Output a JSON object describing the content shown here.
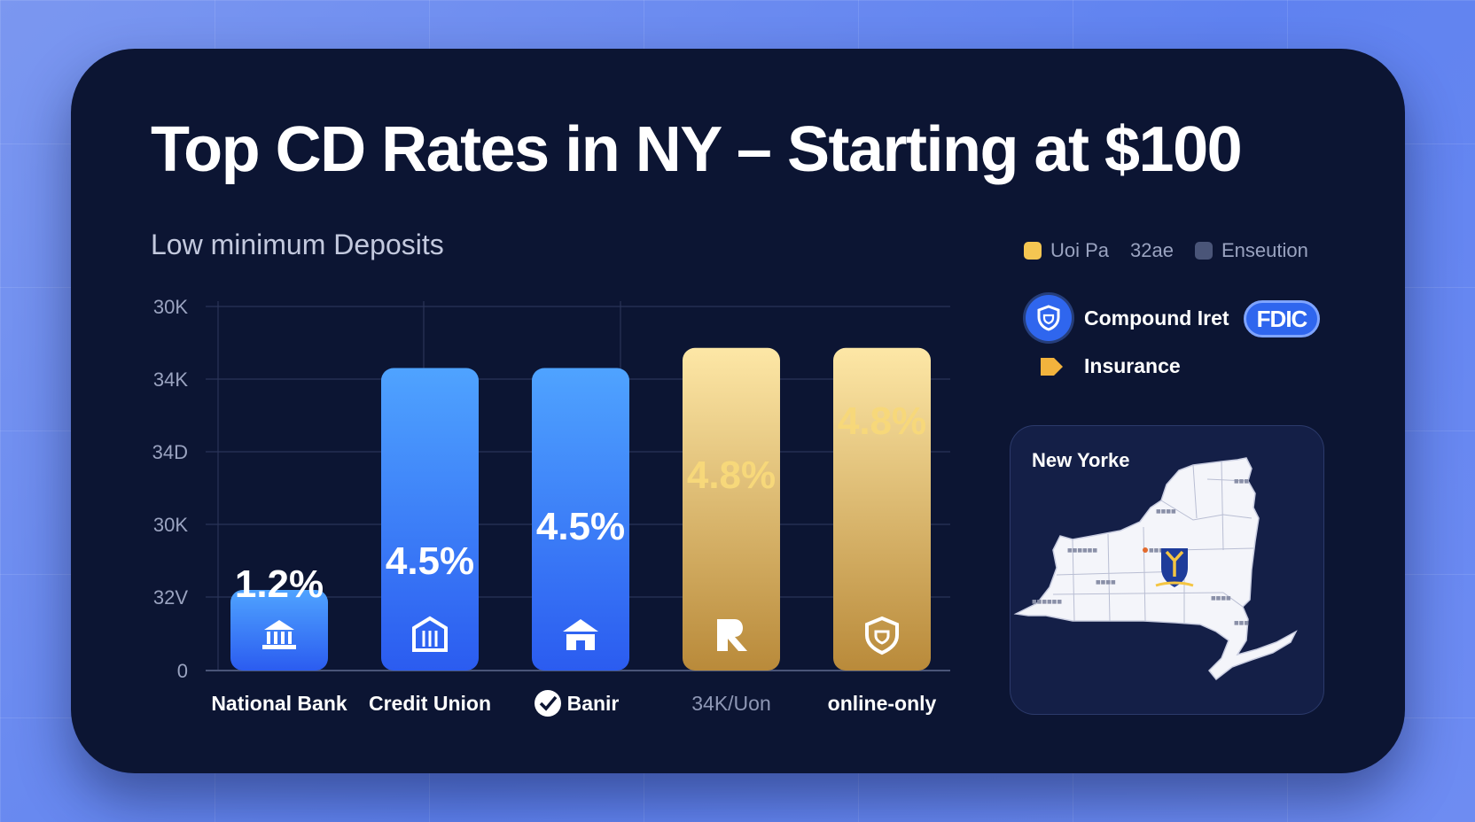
{
  "title": "Top CD Rates in NY – Starting at $100",
  "subtitle": "Low minimum Deposits",
  "legend": [
    {
      "label": "Uoi Pa",
      "color": "#f5c652"
    },
    {
      "label": "32ae",
      "color": ""
    },
    {
      "label": "Enseution",
      "color": "#4a5578"
    }
  ],
  "features": {
    "compound_label": "Compound Iret",
    "insurance_label": "Insurance",
    "fdic_label": "FDIC",
    "shield_icon": "shield-icon",
    "tag_icon": "tag-icon"
  },
  "map": {
    "title": "New Yorke",
    "icon": "new-york-state-map"
  },
  "colors": {
    "card": "#0c1533",
    "blue_bar_top": "#4fa3ff",
    "blue_bar_bottom": "#2b5cf0",
    "gold_bar_top": "#fde7a6",
    "gold_bar_bottom": "#b98a3a",
    "gold_label": "#f7d87a"
  },
  "chart_data": {
    "type": "bar",
    "title": "Top CD Rates in NY – Starting at $100",
    "subtitle": "Low minimum Deposits",
    "categories": [
      "National Bank",
      "Credit Union",
      "Banir",
      "34K/Uon",
      "online-only"
    ],
    "values": [
      1.2,
      4.5,
      4.5,
      4.8,
      4.8
    ],
    "value_labels": [
      "1.2%",
      "4.5%",
      "4.5%",
      "4.8%",
      "4.8%"
    ],
    "bar_styles": [
      "blue",
      "blue",
      "blue",
      "gold",
      "gold"
    ],
    "bar_icons": [
      "bank-icon",
      "columns-icon",
      "house-icon",
      "r-logo-icon",
      "shield-icon"
    ],
    "y_tick_labels": [
      "0",
      "32V",
      "30K",
      "34D",
      "34K",
      "30K"
    ],
    "y_range_units": [
      0,
      5
    ],
    "value_scale_top": 5.1,
    "grid": true,
    "legend_position": "top-right"
  }
}
